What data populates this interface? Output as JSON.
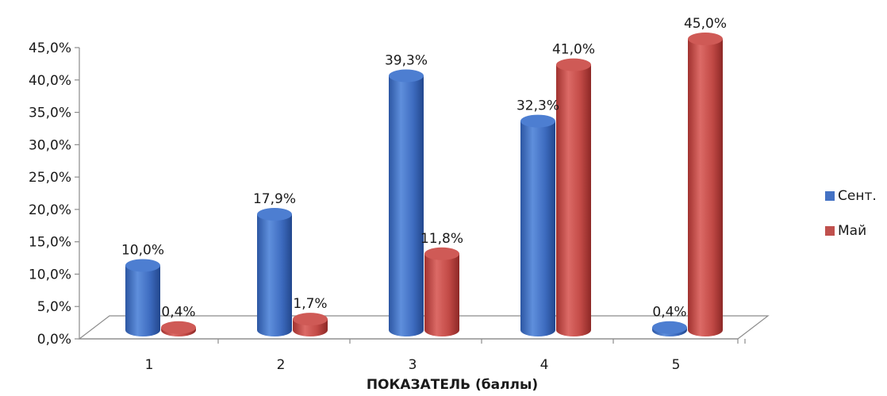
{
  "chart_data": {
    "type": "bar",
    "categories": [
      "1",
      "2",
      "3",
      "4",
      "5"
    ],
    "series": [
      {
        "name": "Сент.",
        "values": [
          10.0,
          17.9,
          39.3,
          32.3,
          0.4
        ],
        "labels": [
          "10,0%",
          "17,9%",
          "39,3%",
          "32,3%",
          "0,4%"
        ],
        "color": "#4472c4"
      },
      {
        "name": "Май",
        "values": [
          0.4,
          1.7,
          11.8,
          41.0,
          45.0
        ],
        "labels": [
          "0,4%",
          "1,7%",
          "11,8%",
          "41,0%",
          "45,0%"
        ],
        "color": "#c0504d"
      }
    ],
    "xlabel": "ПОКАЗАТЕЛЬ (баллы)",
    "ylabel": "",
    "ylim": [
      0,
      45
    ],
    "yticks": [
      "0,0%",
      "5,0%",
      "10,0%",
      "15,0%",
      "20,0%",
      "25,0%",
      "30,0%",
      "35,0%",
      "40,0%",
      "45,0%"
    ],
    "grid": false,
    "legend": "right",
    "style": "3d-cylinder"
  }
}
